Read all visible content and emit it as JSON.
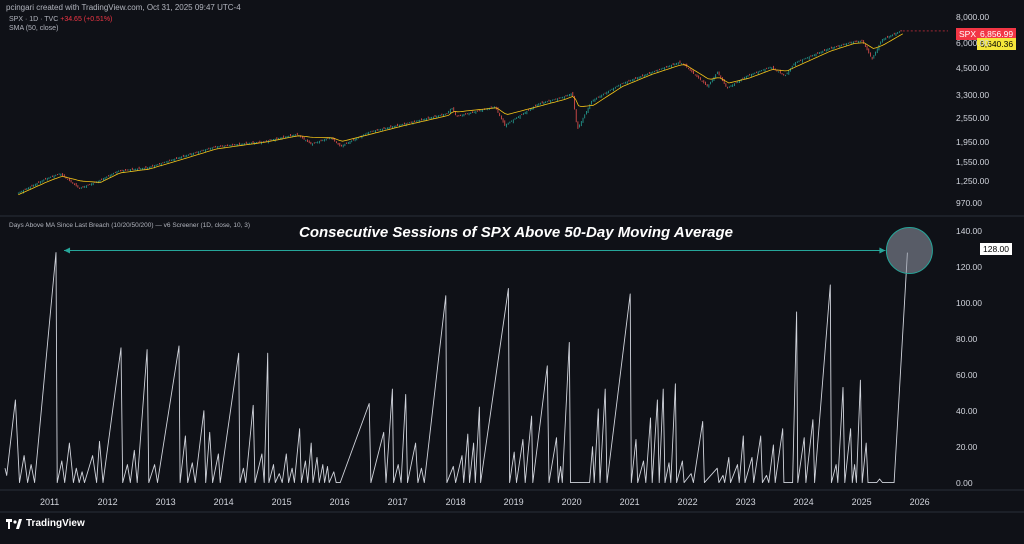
{
  "header": {
    "author_line": "pcingari created with TradingView.com, Oct 31, 2025 09:47 UTC-4",
    "symbol_line": "SPX · 1D · TVC",
    "change": "+34.65 (+0.51%)",
    "sma_label": "SMA (50, close)"
  },
  "badges": {
    "spx_symbol": "SPX",
    "spx_price": "6,856.99",
    "sma_value": "6,640.36",
    "indicator_value": "128.00"
  },
  "indicator": {
    "title": "Days Above MA Since Last Breach (10/20/50/200) — v6 Screener (1D, close, 10, 3)"
  },
  "overlay": {
    "title": "Consecutive Sessions of SPX Above 50-Day Moving Average"
  },
  "footer": {
    "brand": "TradingView"
  },
  "colors": {
    "background": "#0f1117",
    "line": "#d1d4dc",
    "price_up": "#26a69a",
    "price_down": "#ef5350",
    "sma": "#f5c518",
    "annotation": "#26a69a",
    "spx_badge": "#f23645",
    "sma_badge": "#f5e63a"
  },
  "chart_data": [
    {
      "type": "line",
      "name": "SPX daily (log scale) with SMA 50",
      "y_scale": "log",
      "ylim": [
        900,
        8500
      ],
      "y_ticks": [
        "8,000.00",
        "6,000.00",
        "4,500.00",
        "3,300.00",
        "2,550.00",
        "1,950.00",
        "1,550.00",
        "1,250.00",
        "970.00"
      ],
      "y_tick_values": [
        8000,
        6000,
        4500,
        3300,
        2550,
        1950,
        1550,
        1250,
        970
      ],
      "x": [
        "2010-07",
        "2011-01",
        "2011-04",
        "2011-08",
        "2011-12",
        "2012-04",
        "2012-10",
        "2013-05",
        "2013-12",
        "2014-10",
        "2015-05",
        "2015-08",
        "2015-12",
        "2016-02",
        "2016-08",
        "2017-03",
        "2017-12",
        "2018-01",
        "2018-02",
        "2018-10",
        "2018-12",
        "2019-07",
        "2019-12",
        "2020-02",
        "2020-03",
        "2020-06",
        "2020-12",
        "2021-06",
        "2021-12",
        "2022-01",
        "2022-06",
        "2022-08",
        "2022-10",
        "2023-02",
        "2023-07",
        "2023-10",
        "2023-12",
        "2024-07",
        "2024-12",
        "2025-02",
        "2025-04",
        "2025-06",
        "2025-10"
      ],
      "series": [
        {
          "name": "SPX",
          "values": [
            1080,
            1280,
            1360,
            1150,
            1250,
            1400,
            1450,
            1640,
            1840,
            1950,
            2120,
            1900,
            2050,
            1850,
            2180,
            2380,
            2680,
            2870,
            2600,
            2900,
            2350,
            3000,
            3230,
            3380,
            2240,
            3100,
            3750,
            4250,
            4790,
            4700,
            3650,
            4300,
            3580,
            4100,
            4550,
            4120,
            4770,
            5600,
            6050,
            6120,
            4980,
            6200,
            6856.99
          ]
        },
        {
          "name": "SMA (50, close)",
          "values": [
            1070,
            1240,
            1320,
            1250,
            1230,
            1370,
            1430,
            1600,
            1800,
            1940,
            2090,
            2050,
            2040,
            1960,
            2130,
            2350,
            2630,
            2760,
            2740,
            2870,
            2650,
            2930,
            3150,
            3280,
            2900,
            2950,
            3650,
            4180,
            4660,
            4680,
            3950,
            4050,
            3800,
            4000,
            4430,
            4350,
            4580,
            5450,
            5950,
            6000,
            5600,
            5850,
            6640.36
          ]
        }
      ]
    },
    {
      "type": "line",
      "name": "Days Above MA Since Last Breach",
      "ylim": [
        -3,
        145
      ],
      "y_ticks": [
        "140.00",
        "120.00",
        "100.00",
        "80.00",
        "60.00",
        "40.00",
        "20.00",
        "0.00"
      ],
      "y_tick_values": [
        140,
        120,
        100,
        80,
        60,
        40,
        20,
        0
      ],
      "x_ticks": [
        "2011",
        "2012",
        "2013",
        "2014",
        "2015",
        "2016",
        "2017",
        "2018",
        "2019",
        "2020",
        "2021",
        "2022",
        "2023",
        "2024",
        "2025",
        "2026"
      ],
      "x_range": [
        2010.27,
        2026.53
      ],
      "peaks": [
        [
          2010.3,
          4
        ],
        [
          2010.45,
          46
        ],
        [
          2010.52,
          0
        ],
        [
          2010.6,
          15
        ],
        [
          2010.66,
          0
        ],
        [
          2010.72,
          10
        ],
        [
          2010.78,
          0
        ],
        [
          2011.15,
          128
        ],
        [
          2011.17,
          0
        ],
        [
          2011.25,
          12
        ],
        [
          2011.3,
          0
        ],
        [
          2011.38,
          22
        ],
        [
          2011.45,
          0
        ],
        [
          2011.5,
          8
        ],
        [
          2011.55,
          0
        ],
        [
          2011.6,
          6
        ],
        [
          2011.64,
          0
        ],
        [
          2011.78,
          15
        ],
        [
          2011.85,
          0
        ],
        [
          2011.9,
          23
        ],
        [
          2011.96,
          0
        ],
        [
          2012.27,
          75
        ],
        [
          2012.3,
          0
        ],
        [
          2012.38,
          10
        ],
        [
          2012.43,
          0
        ],
        [
          2012.5,
          18
        ],
        [
          2012.55,
          0
        ],
        [
          2012.72,
          74
        ],
        [
          2012.75,
          0
        ],
        [
          2012.85,
          10
        ],
        [
          2012.9,
          0
        ],
        [
          2013.27,
          76
        ],
        [
          2013.29,
          0
        ],
        [
          2013.38,
          26
        ],
        [
          2013.42,
          0
        ],
        [
          2013.5,
          11
        ],
        [
          2013.55,
          0
        ],
        [
          2013.7,
          40
        ],
        [
          2013.73,
          0
        ],
        [
          2013.8,
          28
        ],
        [
          2013.85,
          0
        ],
        [
          2013.95,
          16
        ],
        [
          2013.98,
          0
        ],
        [
          2014.3,
          72
        ],
        [
          2014.32,
          0
        ],
        [
          2014.38,
          8
        ],
        [
          2014.42,
          0
        ],
        [
          2014.55,
          43
        ],
        [
          2014.58,
          0
        ],
        [
          2014.7,
          16
        ],
        [
          2014.74,
          0
        ],
        [
          2014.8,
          72
        ],
        [
          2014.82,
          0
        ],
        [
          2014.9,
          10
        ],
        [
          2014.93,
          0
        ],
        [
          2015.0,
          5
        ],
        [
          2015.05,
          0
        ],
        [
          2015.12,
          16
        ],
        [
          2015.16,
          0
        ],
        [
          2015.22,
          8
        ],
        [
          2015.26,
          0
        ],
        [
          2015.35,
          30
        ],
        [
          2015.38,
          0
        ],
        [
          2015.45,
          12
        ],
        [
          2015.49,
          0
        ],
        [
          2015.55,
          22
        ],
        [
          2015.58,
          0
        ],
        [
          2015.65,
          14
        ],
        [
          2015.69,
          0
        ],
        [
          2015.75,
          10
        ],
        [
          2015.78,
          0
        ],
        [
          2015.83,
          9
        ],
        [
          2015.86,
          0
        ],
        [
          2015.94,
          6
        ],
        [
          2015.98,
          0
        ],
        [
          2016.05,
          0
        ],
        [
          2016.55,
          44
        ],
        [
          2016.58,
          0
        ],
        [
          2016.8,
          28
        ],
        [
          2016.84,
          0
        ],
        [
          2016.95,
          52
        ],
        [
          2016.97,
          0
        ],
        [
          2017.05,
          10
        ],
        [
          2017.1,
          0
        ],
        [
          2017.18,
          49
        ],
        [
          2017.21,
          0
        ],
        [
          2017.35,
          22
        ],
        [
          2017.39,
          0
        ],
        [
          2017.45,
          8
        ],
        [
          2017.5,
          0
        ],
        [
          2017.87,
          104
        ],
        [
          2017.89,
          0
        ],
        [
          2018.0,
          9
        ],
        [
          2018.04,
          0
        ],
        [
          2018.15,
          15
        ],
        [
          2018.18,
          0
        ],
        [
          2018.25,
          27
        ],
        [
          2018.28,
          0
        ],
        [
          2018.35,
          22
        ],
        [
          2018.38,
          0
        ],
        [
          2018.45,
          42
        ],
        [
          2018.47,
          0
        ],
        [
          2018.95,
          108
        ],
        [
          2018.97,
          0
        ],
        [
          2019.05,
          17
        ],
        [
          2019.09,
          0
        ],
        [
          2019.2,
          24
        ],
        [
          2019.24,
          0
        ],
        [
          2019.35,
          37
        ],
        [
          2019.37,
          0
        ],
        [
          2019.62,
          65
        ],
        [
          2019.65,
          0
        ],
        [
          2019.78,
          25
        ],
        [
          2019.81,
          0
        ],
        [
          2019.85,
          9
        ],
        [
          2019.88,
          0
        ],
        [
          2020.0,
          78
        ],
        [
          2020.02,
          0
        ],
        [
          2020.35,
          0
        ],
        [
          2020.4,
          20
        ],
        [
          2020.43,
          0
        ],
        [
          2020.5,
          41
        ],
        [
          2020.53,
          0
        ],
        [
          2020.62,
          52
        ],
        [
          2020.65,
          0
        ],
        [
          2021.05,
          105
        ],
        [
          2021.07,
          0
        ],
        [
          2021.15,
          24
        ],
        [
          2021.18,
          0
        ],
        [
          2021.28,
          12
        ],
        [
          2021.32,
          0
        ],
        [
          2021.4,
          36
        ],
        [
          2021.43,
          0
        ],
        [
          2021.52,
          46
        ],
        [
          2021.55,
          0
        ],
        [
          2021.62,
          52
        ],
        [
          2021.65,
          0
        ],
        [
          2021.72,
          11
        ],
        [
          2021.75,
          0
        ],
        [
          2021.83,
          55
        ],
        [
          2021.85,
          0
        ],
        [
          2021.95,
          12
        ],
        [
          2021.98,
          0
        ],
        [
          2022.1,
          5
        ],
        [
          2022.14,
          0
        ],
        [
          2022.3,
          34
        ],
        [
          2022.33,
          0
        ],
        [
          2022.55,
          8
        ],
        [
          2022.58,
          0
        ],
        [
          2022.65,
          4
        ],
        [
          2022.68,
          0
        ],
        [
          2022.75,
          14
        ],
        [
          2022.78,
          0
        ],
        [
          2022.9,
          10
        ],
        [
          2022.93,
          0
        ],
        [
          2023.0,
          26
        ],
        [
          2023.03,
          0
        ],
        [
          2023.15,
          14
        ],
        [
          2023.18,
          0
        ],
        [
          2023.3,
          26
        ],
        [
          2023.33,
          0
        ],
        [
          2023.4,
          4
        ],
        [
          2023.44,
          0
        ],
        [
          2023.52,
          21
        ],
        [
          2023.55,
          0
        ],
        [
          2023.68,
          30
        ],
        [
          2023.7,
          0
        ],
        [
          2023.85,
          0
        ],
        [
          2023.92,
          95
        ],
        [
          2023.94,
          0
        ],
        [
          2024.05,
          25
        ],
        [
          2024.08,
          0
        ],
        [
          2024.2,
          35
        ],
        [
          2024.23,
          0
        ],
        [
          2024.5,
          110
        ],
        [
          2024.52,
          0
        ],
        [
          2024.6,
          10
        ],
        [
          2024.63,
          0
        ],
        [
          2024.72,
          53
        ],
        [
          2024.75,
          0
        ],
        [
          2024.85,
          30
        ],
        [
          2024.88,
          0
        ],
        [
          2024.92,
          10
        ],
        [
          2024.95,
          0
        ],
        [
          2025.02,
          57
        ],
        [
          2025.05,
          0
        ],
        [
          2025.12,
          22
        ],
        [
          2025.15,
          0
        ],
        [
          2025.3,
          0
        ],
        [
          2025.35,
          2
        ],
        [
          2025.4,
          0
        ],
        [
          2025.6,
          0
        ],
        [
          2025.83,
          128
        ]
      ]
    }
  ]
}
